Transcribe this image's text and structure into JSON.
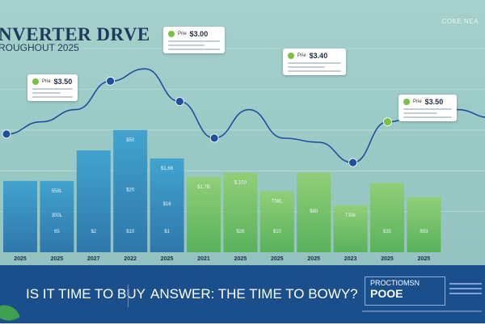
{
  "header": {
    "title": "NVERTER DRVE",
    "subtitle": "ROUGHOUT 2025",
    "corner_text": "COKE NEA"
  },
  "colors": {
    "bar_blue": "#2e8fc0",
    "bar_green": "#6fc24a",
    "line": "#1f4f9e",
    "footer": "#1a4f8c",
    "accent_green": "#7bc043"
  },
  "callouts": [
    {
      "label": "Prie",
      "price": "$3.50"
    },
    {
      "label": "Prie",
      "price": "$3.00"
    },
    {
      "label": "Prie",
      "price": "$3.40"
    },
    {
      "label": "Prie",
      "price": "$3.50"
    }
  ],
  "chart_data": {
    "type": "bar",
    "categories": [
      "2025",
      "2025",
      "2027",
      "2022",
      "2025",
      "2021",
      "2025",
      "2025",
      "2025",
      "2023",
      "2025",
      "2025"
    ],
    "bar_values": [
      35,
      35,
      50,
      60,
      46,
      37,
      39,
      30,
      39,
      23,
      34,
      27
    ],
    "bar_colors": [
      "blue",
      "blue",
      "blue",
      "blue",
      "blue",
      "green",
      "green",
      "green",
      "green",
      "green",
      "green",
      "green"
    ],
    "bar_labels": [
      {
        "index": 1,
        "top": "558L",
        "middle": "300L",
        "bottom": "65"
      },
      {
        "index": 2,
        "top": "",
        "middle": "",
        "bottom": "$2"
      },
      {
        "index": 3,
        "top": "$50",
        "middle": "$20",
        "bottom": "$10"
      },
      {
        "index": 4,
        "top": "$1,66",
        "middle": "$16",
        "bottom": "$1"
      },
      {
        "index": 5,
        "top": "$1,7B",
        "middle": "",
        "bottom": ""
      },
      {
        "index": 6,
        "top": "$,100",
        "middle": "",
        "bottom": "$26"
      },
      {
        "index": 7,
        "top": "T58L",
        "middle": "",
        "bottom": "$10"
      },
      {
        "index": 8,
        "top": "",
        "middle": "$80",
        "bottom": ""
      },
      {
        "index": 9,
        "top": "T33k",
        "middle": "",
        "bottom": ""
      },
      {
        "index": 10,
        "top": "",
        "middle": "",
        "bottom": "$35"
      },
      {
        "index": 11,
        "top": "",
        "middle": "",
        "bottom": "$93"
      }
    ],
    "line_series": {
      "values": [
        18,
        24,
        30,
        44,
        50,
        34,
        16,
        30,
        16,
        14,
        4,
        24,
        28,
        30,
        26
      ],
      "markers": [
        {
          "point": 0,
          "color": "blue"
        },
        {
          "point": 3,
          "color": "blue"
        },
        {
          "point": 5,
          "color": "blue"
        },
        {
          "point": 6,
          "color": "blue"
        },
        {
          "point": 10,
          "color": "blue"
        },
        {
          "point": 11,
          "color": "green"
        }
      ]
    },
    "title": "NVERTER DRVE",
    "ylim": [
      0,
      100
    ],
    "grid": true
  },
  "footer": {
    "question": "IS IT TIME TO BUY",
    "answer": "ANSWER:  THE TIME TO BOWY?",
    "brand_line1": "PROCTIOMSN",
    "brand_line2": "POOE"
  }
}
